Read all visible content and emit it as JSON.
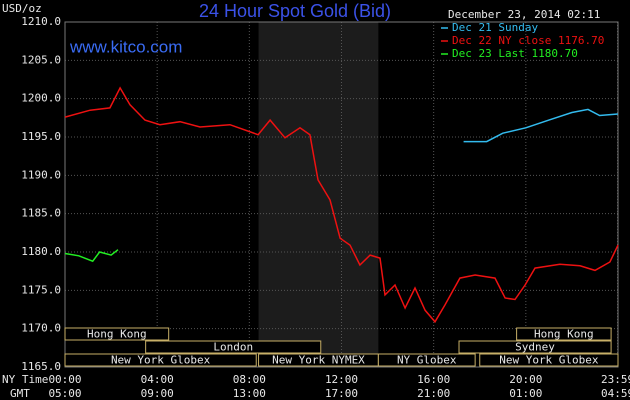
{
  "chart_data": {
    "type": "line",
    "title": "24 Hour Spot Gold (Bid)",
    "y_label": "USD/oz",
    "watermark": "www.kitco.com",
    "timestamp": "December 23, 2014 02:11",
    "x_axis_labels": [
      "NY Time",
      "GMT"
    ],
    "xlim": [
      0,
      24
    ],
    "ylim": [
      1165,
      1210
    ],
    "grid": true,
    "shaded": [
      8.4,
      13.6
    ],
    "yticks": [
      {
        "value": 1165,
        "label": "1165.0"
      },
      {
        "value": 1170,
        "label": "1170.0"
      },
      {
        "value": 1175,
        "label": "1175.0"
      },
      {
        "value": 1180,
        "label": "1180.0"
      },
      {
        "value": 1185,
        "label": "1185.0"
      },
      {
        "value": 1190,
        "label": "1190.0"
      },
      {
        "value": 1195,
        "label": "1195.0"
      },
      {
        "value": 1200,
        "label": "1200.0"
      },
      {
        "value": 1205,
        "label": "1205.0"
      },
      {
        "value": 1210,
        "label": "1210.0"
      }
    ],
    "xticks": [
      {
        "value": 0,
        "label": "00:00"
      },
      {
        "value": 4,
        "label": "04:00"
      },
      {
        "value": 8,
        "label": "08:00"
      },
      {
        "value": 12,
        "label": "12:00"
      },
      {
        "value": 16,
        "label": "16:00"
      },
      {
        "value": 20,
        "label": "20:00"
      },
      {
        "value": 23.98,
        "label": "23:59"
      }
    ],
    "xticks_gmt": [
      {
        "value": 0,
        "label": "05:00"
      },
      {
        "value": 4,
        "label": "09:00"
      },
      {
        "value": 8,
        "label": "13:00"
      },
      {
        "value": 12,
        "label": "17:00"
      },
      {
        "value": 16,
        "label": "21:00"
      },
      {
        "value": 20,
        "label": "01:00"
      },
      {
        "value": 23.98,
        "label": "04:59"
      }
    ],
    "sessions": [
      [
        {
          "label": "Hong Kong",
          "start": 0,
          "end": 4.5
        },
        {
          "label": "Hong Kong",
          "start": 19.6,
          "end": 23.7
        }
      ],
      [
        {
          "label": "London",
          "start": 3.5,
          "end": 11.1
        },
        {
          "label": "Sydney",
          "start": 17.1,
          "end": 23.7
        }
      ],
      [
        {
          "label": "New York Globex",
          "start": 0,
          "end": 8.3
        },
        {
          "label": "New York NYMEX",
          "start": 8.4,
          "end": 13.6
        },
        {
          "label": "NY Globex",
          "start": 13.6,
          "end": 17.8
        },
        {
          "label": "New York Globex",
          "start": 18,
          "end": 24
        }
      ]
    ],
    "series": [
      {
        "name": "Dec 21 Sunday",
        "color": "#33bbee",
        "x": [
          17.3,
          18.3,
          19,
          20,
          21,
          22,
          22.7,
          23.2,
          24
        ],
        "values": [
          1194.4,
          1194.4,
          1195.5,
          1196.2,
          1197.2,
          1198.2,
          1198.6,
          1197.8,
          1198
        ]
      },
      {
        "name": "Dec 22 NY close 1176.70",
        "color": "#ee1111",
        "x": [
          0,
          1.09,
          1.95,
          2.39,
          2.82,
          3.47,
          4.12,
          4.99,
          5.86,
          7.16,
          8.38,
          8.9,
          9.55,
          10.2,
          10.63,
          10.98,
          11.5,
          11.94,
          12.37,
          12.8,
          13.24,
          13.67,
          13.89,
          14.32,
          14.76,
          15.19,
          15.63,
          16.06,
          16.49,
          17.14,
          17.8,
          18.66,
          19.1,
          19.53,
          19.97,
          20.4,
          21.48,
          22.35,
          23,
          23.65,
          24
        ],
        "values": [
          1197.6,
          1198.5,
          1198.8,
          1201.4,
          1199.2,
          1197.2,
          1196.6,
          1197,
          1196.3,
          1196.6,
          1195.3,
          1197.2,
          1194.9,
          1196.2,
          1195.3,
          1189.4,
          1186.8,
          1181.8,
          1180.9,
          1178.3,
          1179.6,
          1179.2,
          1174.4,
          1175.7,
          1172.7,
          1175.3,
          1172.4,
          1170.9,
          1173.1,
          1176.6,
          1177,
          1176.6,
          1174,
          1173.8,
          1175.7,
          1177.9,
          1178.4,
          1178.2,
          1177.6,
          1178.7,
          1180.9
        ]
      },
      {
        "name": "Dec 23 Last 1180.70",
        "color": "#22ee22",
        "x": [
          0,
          0.6,
          1.2,
          1.5,
          2,
          2.3
        ],
        "values": [
          1179.8,
          1179.5,
          1178.8,
          1180,
          1179.6,
          1180.3
        ]
      }
    ]
  }
}
